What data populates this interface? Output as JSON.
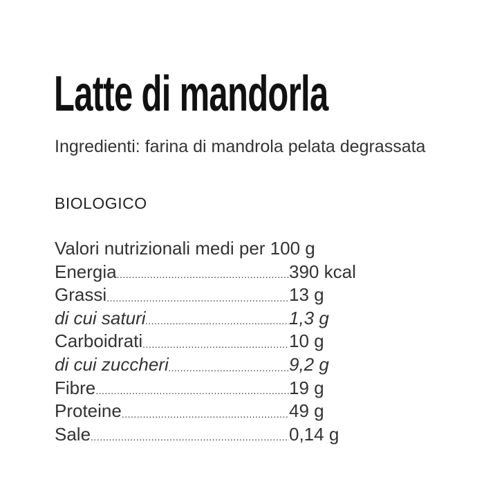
{
  "title": "Latte di mandorla",
  "ingredients": "Ingredienti: farina di mandrola pelata degrassata",
  "certification": "BIOLOGICO",
  "nutrition": {
    "heading": "Valori nutrizionali medi per 100 g",
    "rows": [
      {
        "label": "Energia",
        "value": "390 kcal",
        "italic": false
      },
      {
        "label": "Grassi",
        "value": "13 g",
        "italic": false
      },
      {
        "label": "di cui saturi",
        "value": "1,3 g",
        "italic": true
      },
      {
        "label": "Carboidrati",
        "value": "10 g",
        "italic": false
      },
      {
        "label": "di cui zuccheri",
        "value": "9,2 g",
        "italic": true
      },
      {
        "label": "Fibre",
        "value": "19 g",
        "italic": false
      },
      {
        "label": "Proteine",
        "value": "49 g",
        "italic": false
      },
      {
        "label": "Sale",
        "value": "0,14 g",
        "italic": false
      }
    ]
  }
}
